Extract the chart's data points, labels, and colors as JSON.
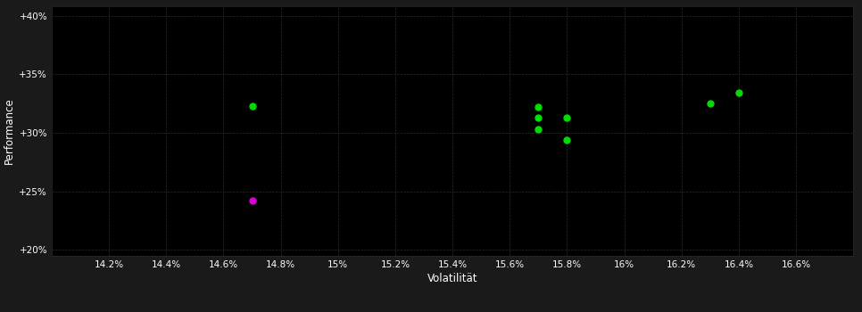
{
  "background_color": "#1a1a1a",
  "plot_bg_color": "#000000",
  "grid_color": "#2a2a2a",
  "text_color": "#ffffff",
  "xlabel": "Volatilität",
  "ylabel": "Performance",
  "xlim": [
    0.14,
    0.168
  ],
  "ylim": [
    0.195,
    0.408
  ],
  "xticks": [
    0.142,
    0.144,
    0.146,
    0.148,
    0.15,
    0.152,
    0.154,
    0.156,
    0.158,
    0.16,
    0.162,
    0.164,
    0.166
  ],
  "xtick_labels": [
    "14.2%",
    "14.4%",
    "14.6%",
    "14.8%",
    "15%",
    "15.2%",
    "15.4%",
    "15.6%",
    "15.8%",
    "16%",
    "16.2%",
    "16.4%",
    "16.6%"
  ],
  "yticks": [
    0.2,
    0.25,
    0.3,
    0.35,
    0.4
  ],
  "ytick_labels": [
    "+20%",
    "+25%",
    "+30%",
    "+35%",
    "+40%"
  ],
  "green_points": [
    [
      0.147,
      0.323
    ],
    [
      0.157,
      0.322
    ],
    [
      0.157,
      0.313
    ],
    [
      0.158,
      0.313
    ],
    [
      0.157,
      0.303
    ],
    [
      0.158,
      0.294
    ],
    [
      0.163,
      0.325
    ],
    [
      0.164,
      0.334
    ]
  ],
  "magenta_points": [
    [
      0.147,
      0.242
    ]
  ],
  "green_color": "#00dd00",
  "magenta_color": "#dd00dd",
  "marker_size": 5
}
